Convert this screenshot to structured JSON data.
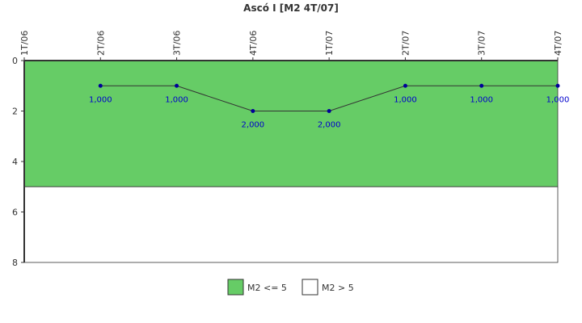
{
  "chart_data": {
    "type": "line",
    "title": "Ascó I [M2 4T/07]",
    "categories": [
      "1T/06",
      "2T/06",
      "3T/06",
      "4T/06",
      "1T/07",
      "2T/07",
      "3T/07",
      "4T/07"
    ],
    "series": [
      {
        "name": null,
        "color": "#333333",
        "marker_color": "#000099",
        "values": [
          null,
          1,
          1,
          2,
          2,
          1,
          1,
          1
        ],
        "value_labels": [
          null,
          "1,000",
          "1,000",
          "2,000",
          "2,000",
          "1,000",
          "1,000",
          "1,000"
        ]
      }
    ],
    "bands": [
      {
        "name": "M2 <= 5",
        "color": "#66cc66",
        "from": 0,
        "to": 5
      },
      {
        "name": "M2 > 5",
        "color": "#ffffff",
        "from": 5,
        "to": 8
      }
    ],
    "ylim": [
      8,
      0
    ],
    "yticks": [
      0,
      2,
      4,
      6,
      8
    ]
  }
}
